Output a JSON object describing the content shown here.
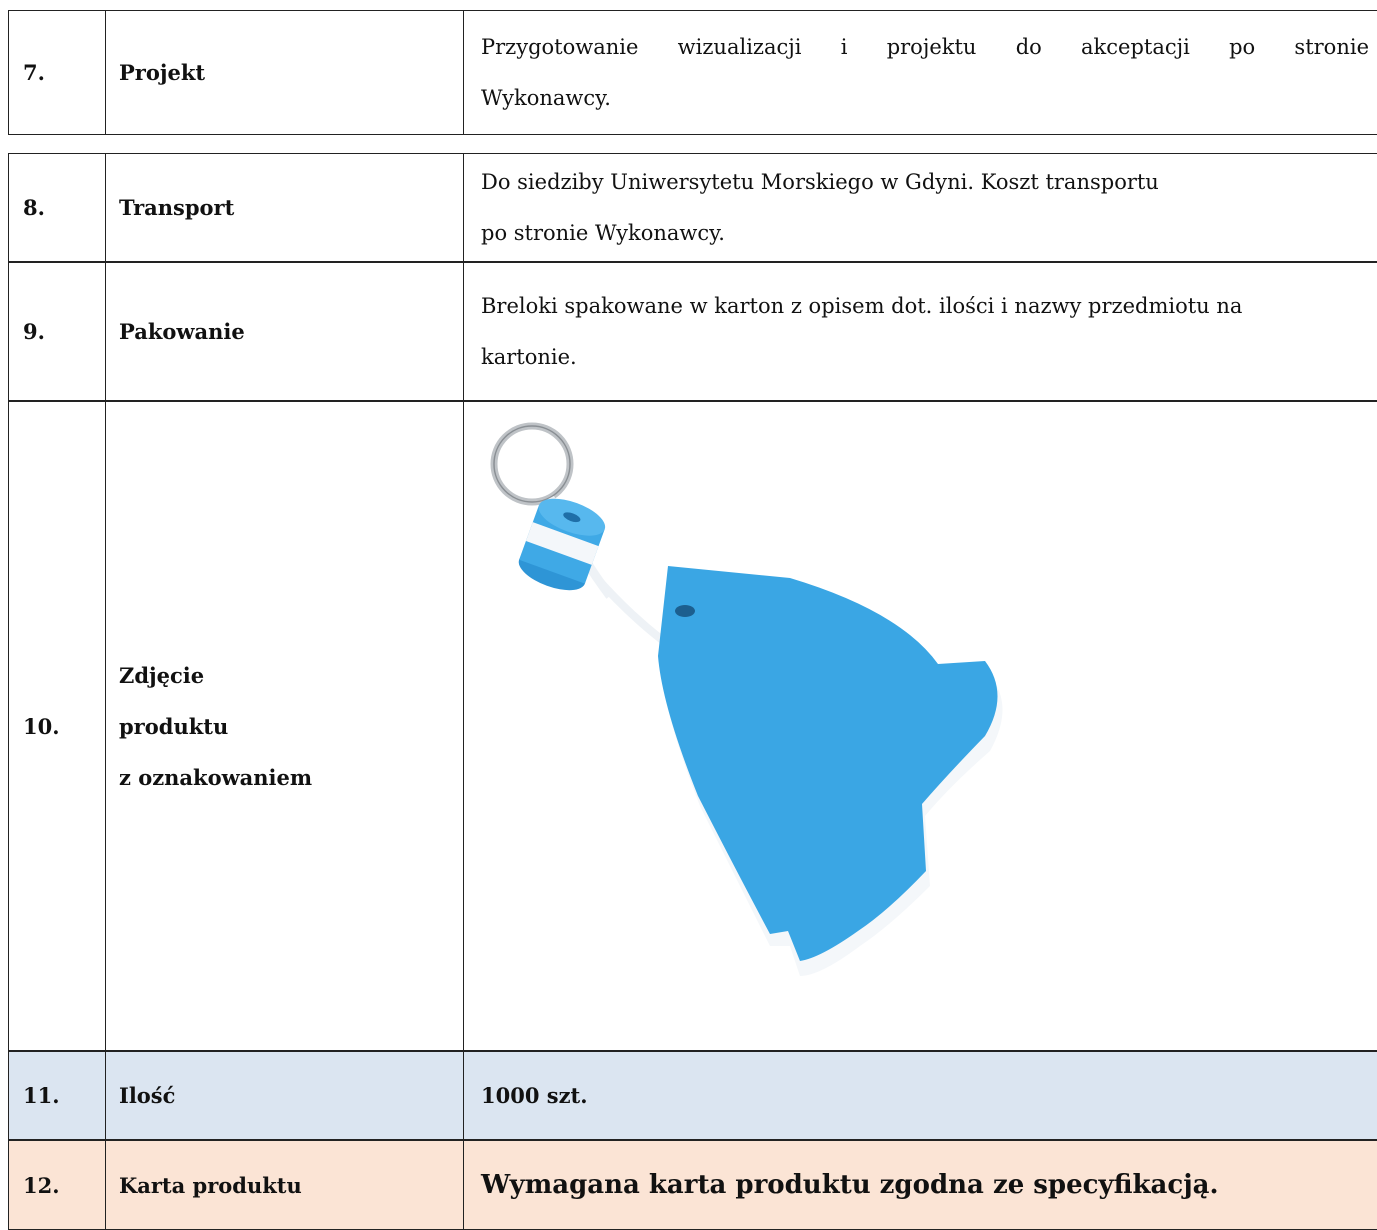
{
  "rows": [
    {
      "number": "7.",
      "label": [
        "Projekt"
      ],
      "description": [
        "Przygotowanie wizualizacji i projektu do akceptacji po stronie",
        "Wykonawcy."
      ]
    },
    {
      "number": "8.",
      "label": [
        "Transport"
      ],
      "description": [
        "Do siedziby Uniwersytetu Morskiego w Gdyni. Koszt transportu",
        "po stronie Wykonawcy."
      ]
    },
    {
      "number": "9.",
      "label": [
        "Pakowanie"
      ],
      "description": [
        "Breloki spakowane w karton z opisem dot. ilości i nazwy przedmiotu na",
        "kartonie."
      ]
    },
    {
      "number": "10.",
      "label": [
        "Zdjęcie",
        "produktu",
        "z oznakowaniem"
      ]
    },
    {
      "number": "11.",
      "label": [
        "Ilość"
      ],
      "description": [
        "1000 szt."
      ]
    },
    {
      "number": "12.",
      "label": [
        "Karta produktu"
      ],
      "description": [
        "Wymagana karta produktu zgodna ze specyfikacją."
      ]
    }
  ]
}
